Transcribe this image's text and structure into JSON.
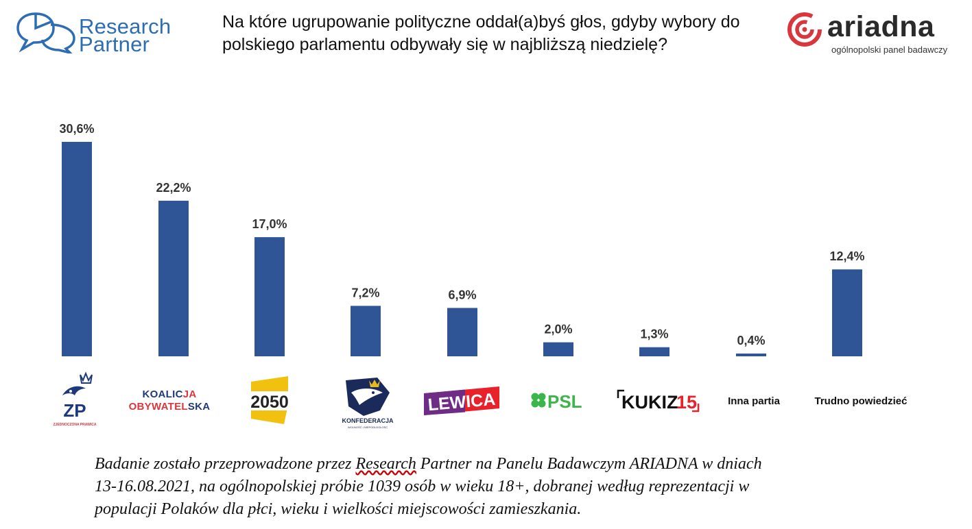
{
  "header": {
    "rp_logo_line1": "Research",
    "rp_logo_line2": "Partner",
    "question_line1": "Na które ugrupowanie polityczne oddał(a)byś głos, gdyby wybory do",
    "question_line2": "polskiego parlamentu odbywały się w najbliższą niedzielę?",
    "ariadna_name": "ariadna",
    "ariadna_tagline": "ogólnopolski panel badawczy"
  },
  "colors": {
    "bar": "#2f5597",
    "rp_blue": "#2e6db4",
    "ariadna_red": "#d9363e"
  },
  "chart_data": {
    "type": "bar",
    "categories": [
      "ZP",
      "KOALICJA OBYWATELSKA",
      "2050",
      "KONFEDERACJA",
      "LEWICA",
      "PSL",
      "KUKIZ15",
      "Inna partia",
      "Trudno powiedzieć"
    ],
    "values": [
      30.6,
      22.2,
      17.0,
      7.2,
      6.9,
      2.0,
      1.3,
      0.4,
      12.4
    ],
    "labels": [
      "30,6%",
      "22,2%",
      "17,0%",
      "7,2%",
      "6,9%",
      "2,0%",
      "1,3%",
      "0,4%",
      "12,4%"
    ],
    "ylim": [
      0,
      30.6
    ],
    "grid": false
  },
  "logos": {
    "zp": {
      "main": "ZP",
      "sub": "ZJEDNOCZONA PRAWICA"
    },
    "ko": {
      "line1a": "KOALIC",
      "line1b": "JA",
      "line2a": "OBYWATEL",
      "line2b": "SKA"
    },
    "p2050": {
      "text": "2050"
    },
    "konf": {
      "main": "KONFEDERACJA",
      "sub": "WOLNOŚĆ I NIEPODLEGŁOŚĆ"
    },
    "lewica": {
      "text": "LEWICA"
    },
    "psl": {
      "text": "PSL"
    },
    "kukiz": {
      "text1": "KUKIZ",
      "text2": "15"
    },
    "inna": {
      "text": "Inna partia"
    },
    "trudno": {
      "text": "Trudno powiedzieć"
    }
  },
  "footer": {
    "p1": "Badanie zostało przeprowadzone przez ",
    "p2": "Research",
    "p3": " Partner na Panelu Badawczym ARIADNA w dniach",
    "line2": "13-16.08.2021, na ogólnopolskiej próbie 1039 osób w wieku 18+, dobranej według reprezentacji w",
    "line3": "populacji Polaków dla płci, wieku i wielkości miejscowości zamieszkania."
  }
}
